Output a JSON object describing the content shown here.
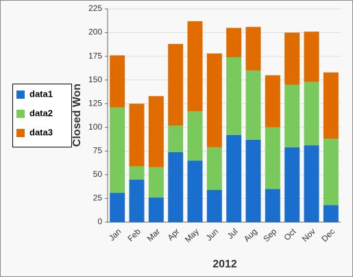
{
  "chart_data": {
    "type": "stacked_bar",
    "x_label": "2012",
    "y_label": "Closed Won",
    "categories": [
      "Jan",
      "Feb",
      "Mar",
      "Apr",
      "May",
      "Jun",
      "Jul",
      "Aug",
      "Sep",
      "Oct",
      "Nov",
      "Dec"
    ],
    "series": [
      {
        "name": "data1",
        "color": "#1a6fce",
        "values": [
          31,
          45,
          26,
          74,
          65,
          34,
          92,
          87,
          35,
          79,
          81,
          18
        ]
      },
      {
        "name": "data2",
        "color": "#79c95c",
        "values": [
          90,
          14,
          32,
          28,
          52,
          45,
          82,
          73,
          65,
          66,
          67,
          70
        ]
      },
      {
        "name": "data3",
        "color": "#e06c00",
        "values": [
          55,
          66,
          75,
          86,
          95,
          99,
          31,
          46,
          55,
          55,
          53,
          70
        ]
      }
    ],
    "ylim": [
      0,
      225
    ],
    "yticks": [
      0,
      25,
      50,
      75,
      100,
      125,
      150,
      175,
      200,
      225
    ],
    "grid": true
  }
}
